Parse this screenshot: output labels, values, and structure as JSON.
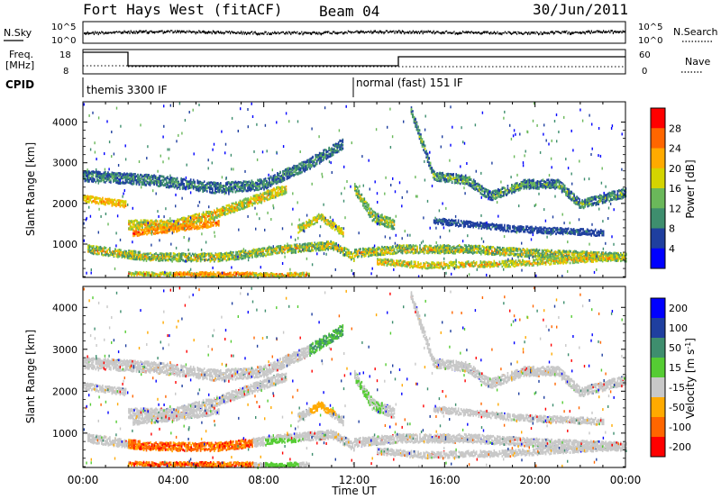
{
  "header": {
    "station": "Fort Hays West (fitACF)",
    "beam": "Beam 04",
    "date": "30/Jun/2011"
  },
  "side_labels": {
    "nsky": "N.Sky",
    "freq_line1": "Freq.",
    "freq_line2": "[MHz]",
    "cpid": "CPID",
    "nsearch": "N.Search",
    "nave": "Nave"
  },
  "noise_axis": {
    "left_ticks": [
      "10^5",
      "10^0"
    ],
    "right_ticks": [
      "10^5",
      "10^0"
    ]
  },
  "freq_axis": {
    "left_ticks": [
      "18",
      "8"
    ],
    "right_ticks": [
      "60",
      "0"
    ]
  },
  "cpid_modes": [
    {
      "label": "themis 3300 IF",
      "start_hour": 0
    },
    {
      "label": "normal (fast) 151 IF",
      "start_hour": 12
    }
  ],
  "colors": {
    "power": [
      "#0000ff",
      "#1f3f9f",
      "#3e8e6e",
      "#6ab85a",
      "#d4d400",
      "#ffaa00",
      "#ff6600",
      "#ff0000"
    ],
    "velocity": [
      "#0000ff",
      "#1f3f9f",
      "#3e8e6e",
      "#55cc33",
      "#c8c8c8",
      "#ffaa00",
      "#ff6600",
      "#ff0000"
    ]
  },
  "chart_data": [
    {
      "type": "heatmap",
      "ylabel": "Slant Range [km]",
      "x_ticks": [
        "00:00",
        "04:00",
        "08:00",
        "12:00",
        "16:00",
        "20:00",
        "00:00"
      ],
      "y_ticks": [
        1000,
        2000,
        3000,
        4000
      ],
      "xlim": [
        0,
        24
      ],
      "ylim": [
        180,
        4500
      ],
      "colorbar": {
        "label": "Power [dB]",
        "ticks": [
          "4",
          "8",
          "12",
          "16",
          "20",
          "24",
          "28"
        ],
        "range": [
          0,
          32
        ]
      }
    },
    {
      "type": "heatmap",
      "ylabel": "Slant Range [km]",
      "xlabel": "Time UT",
      "x_ticks": [
        "00:00",
        "04:00",
        "08:00",
        "12:00",
        "16:00",
        "20:00",
        "00:00"
      ],
      "y_ticks": [
        1000,
        2000,
        3000,
        4000
      ],
      "xlim": [
        0,
        24
      ],
      "ylim": [
        180,
        4500
      ],
      "colorbar": {
        "label": "Velocity [m s",
        "label_sup": "-1",
        "label_end": "]",
        "ticks": [
          "200",
          "100",
          "50",
          "15",
          "-15",
          "-50",
          "-100",
          "-200"
        ]
      }
    }
  ]
}
